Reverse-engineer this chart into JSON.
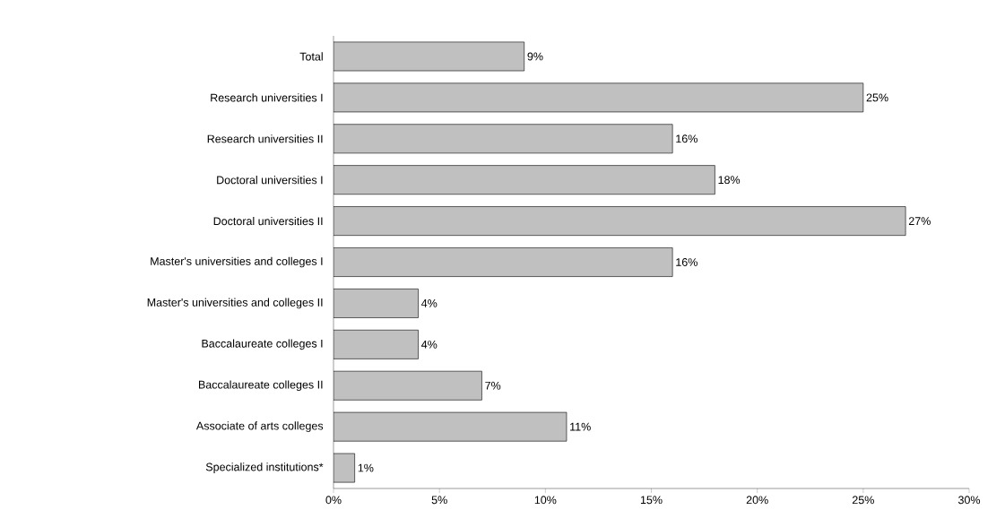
{
  "chart_data": {
    "type": "bar",
    "orientation": "horizontal",
    "categories": [
      "Total",
      "Research universities I",
      "Research universities II",
      "Doctoral universities I",
      "Doctoral universities II",
      "Master's universities and colleges I",
      "Master's universities and colleges II",
      "Baccalaureate colleges I",
      "Baccalaureate colleges II",
      "Associate of arts colleges",
      "Specialized institutions*"
    ],
    "values": [
      9,
      25,
      16,
      18,
      27,
      16,
      4,
      4,
      7,
      11,
      1
    ],
    "value_labels": [
      "9%",
      "25%",
      "16%",
      "18%",
      "27%",
      "16%",
      "4%",
      "4%",
      "7%",
      "11%",
      "1%"
    ],
    "color": "#c0c0c0",
    "xlim": [
      0,
      30
    ],
    "xticks": [
      {
        "value": 0,
        "label": "0%"
      },
      {
        "value": 5,
        "label": "5%"
      },
      {
        "value": 10,
        "label": "10%"
      },
      {
        "value": 15,
        "label": "15%"
      },
      {
        "value": 20,
        "label": "20%"
      },
      {
        "value": 25,
        "label": "25%"
      },
      {
        "value": 30,
        "label": "30%"
      }
    ],
    "grid": false
  }
}
